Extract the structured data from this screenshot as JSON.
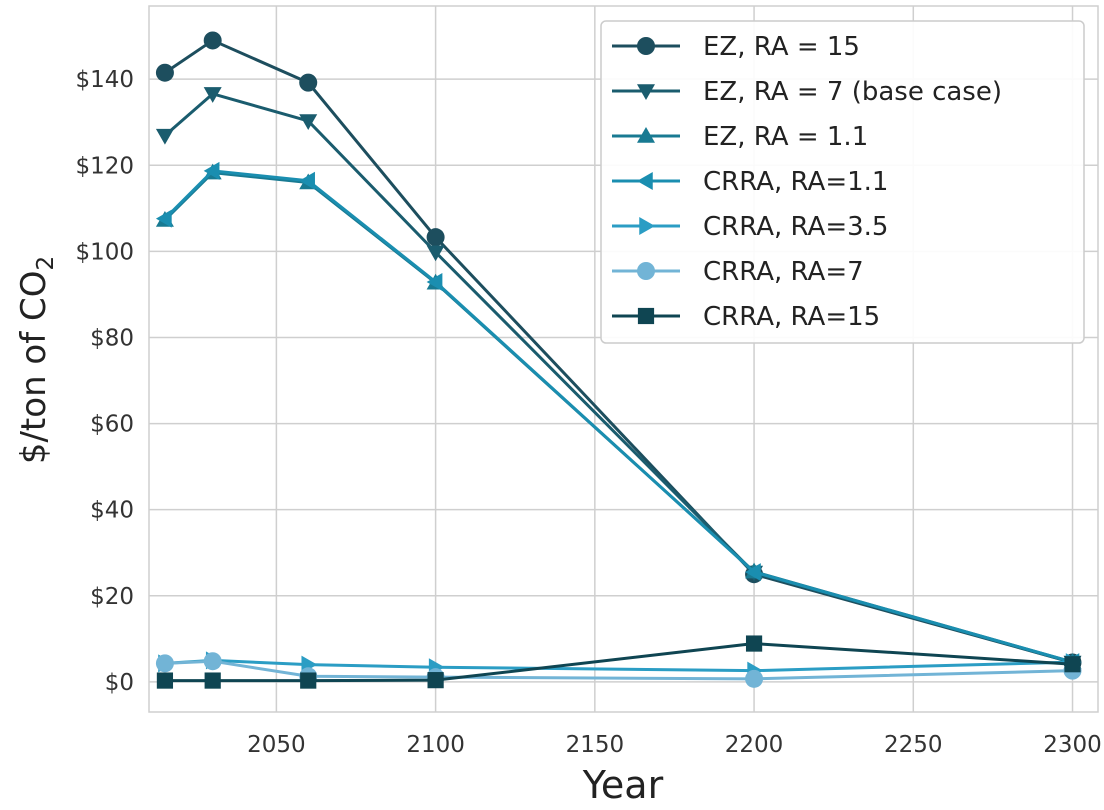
{
  "chart_data": {
    "type": "line",
    "title": "",
    "xlabel": "Year",
    "ylabel_main": "$/ton of CO",
    "ylabel_subscript": "2",
    "xlim": [
      2010,
      2308
    ],
    "ylim": [
      -7,
      157
    ],
    "x_ticks": [
      2050,
      2100,
      2150,
      2200,
      2250,
      2300
    ],
    "x_tick_labels": [
      "2050",
      "2100",
      "2150",
      "2200",
      "2250",
      "2300"
    ],
    "y_ticks": [
      0,
      20,
      40,
      60,
      80,
      100,
      120,
      140
    ],
    "y_tick_labels": [
      "$0",
      "$20",
      "$40",
      "$60",
      "$80",
      "$100",
      "$120",
      "$140"
    ],
    "grid": true,
    "legend_position": "top-right",
    "x": [
      2015,
      2030,
      2060,
      2100,
      2200,
      2300
    ],
    "series": [
      {
        "name": "EZ, RA = 15",
        "values": [
          141.5,
          149.0,
          139.2,
          103.3,
          25.0,
          4.5
        ],
        "color": "#1d4e5e",
        "marker": "circle"
      },
      {
        "name": "EZ, RA = 7 (base case)",
        "values": [
          126.9,
          136.6,
          130.3,
          99.8,
          25.4,
          4.5
        ],
        "color": "#1a5c6e",
        "marker": "triangle-down"
      },
      {
        "name": "EZ, RA = 1.1",
        "values": [
          107.3,
          118.3,
          116.0,
          92.7,
          25.6,
          4.6
        ],
        "color": "#187a92",
        "marker": "triangle-up"
      },
      {
        "name": "CRRA, RA=1.1",
        "values": [
          107.6,
          118.7,
          116.4,
          92.9,
          25.5,
          4.6
        ],
        "color": "#1a8eb0",
        "marker": "triangle-left"
      },
      {
        "name": "CRRA, RA=3.5",
        "values": [
          4.3,
          5.0,
          4.0,
          3.4,
          2.6,
          4.6
        ],
        "color": "#2b9dc4",
        "marker": "triangle-right"
      },
      {
        "name": "CRRA, RA=7",
        "values": [
          4.3,
          4.8,
          1.3,
          1.1,
          0.7,
          2.6
        ],
        "color": "#72b4d6",
        "marker": "circle"
      },
      {
        "name": "CRRA, RA=15",
        "values": [
          0.3,
          0.3,
          0.3,
          0.4,
          8.9,
          4.1
        ],
        "color": "#0f4552",
        "marker": "square"
      }
    ]
  }
}
